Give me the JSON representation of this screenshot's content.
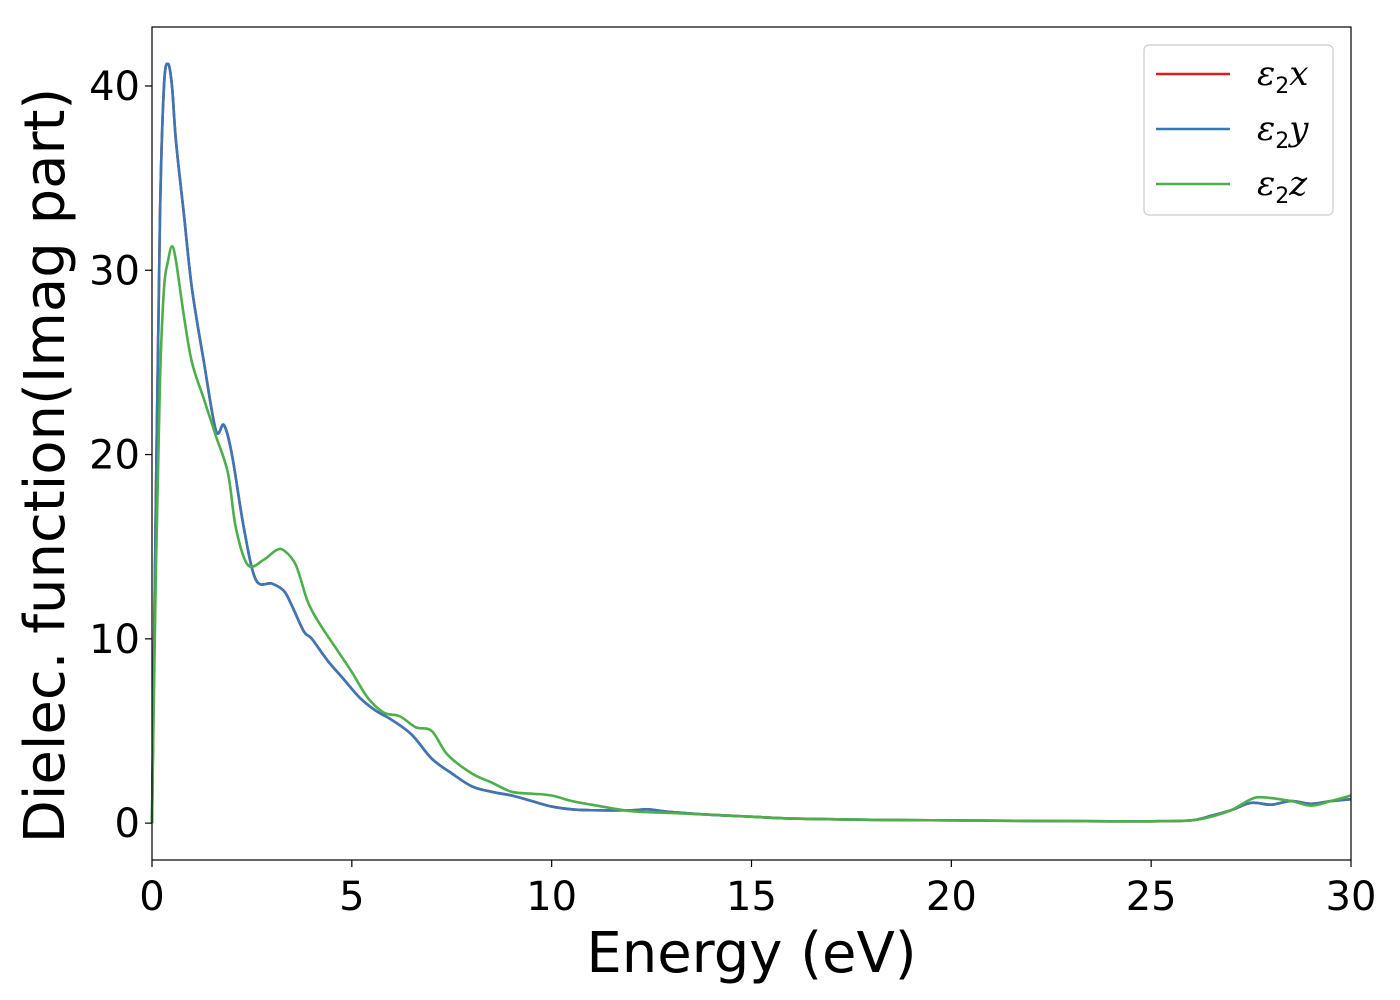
{
  "chart_data": {
    "type": "line",
    "xlabel": "Energy (eV)",
    "ylabel": "Dielec. function(Imag part)",
    "xlim": [
      0,
      30
    ],
    "ylim": [
      -2,
      43.2
    ],
    "xticks": [
      0,
      5,
      10,
      15,
      20,
      25,
      30
    ],
    "yticks": [
      0,
      10,
      20,
      30,
      40
    ],
    "grid": false,
    "legend_position": "top-right",
    "series": [
      {
        "name": "ε2x",
        "legend_base": "ε",
        "legend_sub": "2",
        "legend_var": "x",
        "color": "#e41a1c",
        "x": [
          0,
          0.1,
          0.2,
          0.3,
          0.4,
          0.5,
          0.6,
          0.8,
          1.0,
          1.3,
          1.6,
          1.8,
          2.0,
          2.3,
          2.6,
          3.0,
          3.3,
          3.5,
          3.8,
          4.0,
          4.4,
          4.8,
          5.2,
          5.6,
          6.0,
          6.5,
          7.0,
          7.5,
          8.0,
          8.5,
          9.0,
          9.5,
          10.0,
          10.5,
          11.0,
          12.0,
          12.4,
          13.0,
          14.0,
          15.0,
          16.0,
          18.0,
          20.0,
          22.0,
          24.0,
          25.0,
          26.0,
          26.5,
          27.0,
          27.5,
          28.0,
          28.5,
          29.0,
          29.5,
          30.0
        ],
        "y": [
          0,
          18,
          33,
          40,
          41.2,
          40,
          37,
          33,
          29,
          25,
          21.3,
          21.6,
          20,
          16,
          13.2,
          13,
          12.6,
          11.8,
          10.4,
          10,
          8.8,
          7.8,
          6.8,
          6.1,
          5.6,
          4.8,
          3.5,
          2.7,
          2.0,
          1.7,
          1.5,
          1.2,
          0.9,
          0.75,
          0.7,
          0.7,
          0.75,
          0.6,
          0.45,
          0.35,
          0.25,
          0.18,
          0.15,
          0.12,
          0.1,
          0.1,
          0.15,
          0.4,
          0.7,
          1.1,
          1.0,
          1.2,
          1.05,
          1.2,
          1.3
        ]
      },
      {
        "name": "ε2y",
        "legend_base": "ε",
        "legend_sub": "2",
        "legend_var": "y",
        "color": "#3a78b5",
        "x": [
          0,
          0.1,
          0.2,
          0.3,
          0.4,
          0.5,
          0.6,
          0.8,
          1.0,
          1.3,
          1.6,
          1.8,
          2.0,
          2.3,
          2.6,
          3.0,
          3.3,
          3.5,
          3.8,
          4.0,
          4.4,
          4.8,
          5.2,
          5.6,
          6.0,
          6.5,
          7.0,
          7.5,
          8.0,
          8.5,
          9.0,
          9.5,
          10.0,
          10.5,
          11.0,
          12.0,
          12.4,
          13.0,
          14.0,
          15.0,
          16.0,
          18.0,
          20.0,
          22.0,
          24.0,
          25.0,
          26.0,
          26.5,
          27.0,
          27.5,
          28.0,
          28.5,
          29.0,
          29.5,
          30.0
        ],
        "y": [
          0,
          18,
          33,
          40,
          41.2,
          40,
          37,
          33,
          29,
          25,
          21.3,
          21.6,
          20,
          16,
          13.2,
          13,
          12.6,
          11.8,
          10.4,
          10,
          8.8,
          7.8,
          6.8,
          6.1,
          5.6,
          4.8,
          3.5,
          2.7,
          2.0,
          1.7,
          1.5,
          1.2,
          0.9,
          0.75,
          0.7,
          0.7,
          0.75,
          0.6,
          0.45,
          0.35,
          0.25,
          0.18,
          0.15,
          0.12,
          0.1,
          0.1,
          0.15,
          0.4,
          0.7,
          1.1,
          1.0,
          1.2,
          1.05,
          1.2,
          1.3
        ]
      },
      {
        "name": "ε2z",
        "legend_base": "ε",
        "legend_sub": "2",
        "legend_var": "z",
        "color": "#4daf4a",
        "x": [
          0,
          0.1,
          0.2,
          0.3,
          0.4,
          0.5,
          0.6,
          0.8,
          1.0,
          1.3,
          1.6,
          1.9,
          2.1,
          2.4,
          2.8,
          3.1,
          3.3,
          3.6,
          3.9,
          4.2,
          4.6,
          5.0,
          5.4,
          5.8,
          6.2,
          6.6,
          7.0,
          7.4,
          8.0,
          8.5,
          9.0,
          9.5,
          10.0,
          10.5,
          11.0,
          12.0,
          13.0,
          14.0,
          15.0,
          16.0,
          18.0,
          20.0,
          22.0,
          24.0,
          25.0,
          26.0,
          26.5,
          27.0,
          27.5,
          27.8,
          28.5,
          29.0,
          29.5,
          30.0
        ],
        "y": [
          0,
          14,
          24,
          29,
          30.5,
          31.3,
          30.5,
          27.5,
          25,
          23,
          21,
          19,
          16,
          14,
          14.3,
          14.8,
          14.8,
          14,
          12,
          10.8,
          9.5,
          8.2,
          6.8,
          6.0,
          5.8,
          5.2,
          5.0,
          3.7,
          2.7,
          2.2,
          1.7,
          1.6,
          1.5,
          1.2,
          1.0,
          0.65,
          0.55,
          0.45,
          0.35,
          0.25,
          0.18,
          0.15,
          0.12,
          0.1,
          0.1,
          0.15,
          0.35,
          0.7,
          1.3,
          1.4,
          1.2,
          0.95,
          1.2,
          1.5
        ]
      }
    ]
  }
}
